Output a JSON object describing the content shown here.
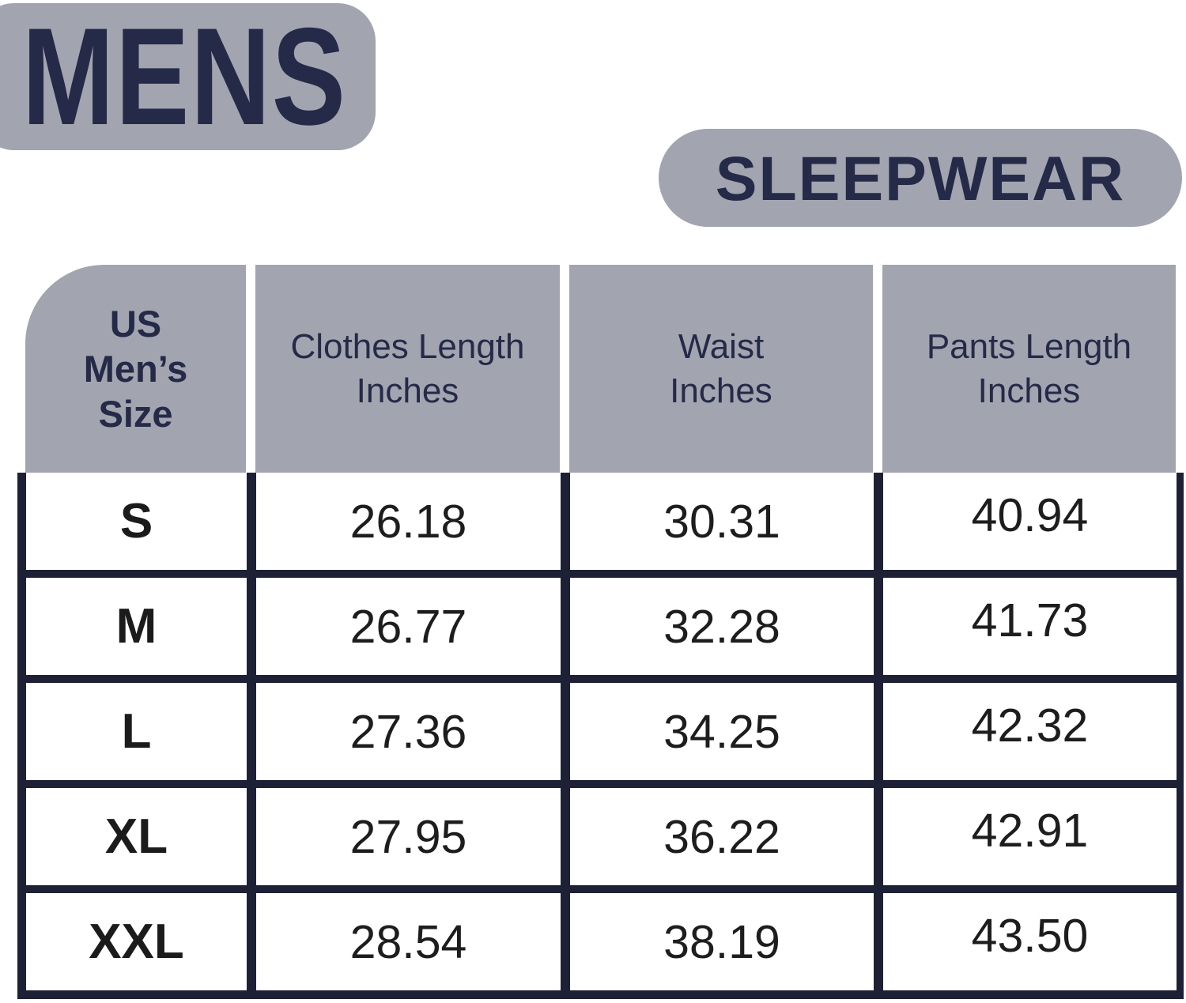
{
  "badges": {
    "mens": "MENS",
    "sleepwear": "SLEEPWEAR"
  },
  "table": {
    "header": {
      "size": {
        "l1": "US",
        "l2": "Men’s",
        "l3": "Size"
      },
      "clothes": {
        "l1": "Clothes Length",
        "l2": "Inches"
      },
      "waist": {
        "l1": "Waist",
        "l2": "Inches"
      },
      "pants": {
        "l1": "Pants Length",
        "l2": "Inches"
      }
    },
    "rows": [
      {
        "size": "S",
        "clothes_length": "26.18",
        "waist": "30.31",
        "pants_length": "40.94"
      },
      {
        "size": "M",
        "clothes_length": "26.77",
        "waist": "32.28",
        "pants_length": "41.73"
      },
      {
        "size": "L",
        "clothes_length": "27.36",
        "waist": "34.25",
        "pants_length": "42.32"
      },
      {
        "size": "XL",
        "clothes_length": "27.95",
        "waist": "36.22",
        "pants_length": "42.91"
      },
      {
        "size": "XXL",
        "clothes_length": "28.54",
        "waist": "38.19",
        "pants_length": "43.50"
      }
    ]
  },
  "colors": {
    "badge_gray": "#a2a4b0",
    "navy_text": "#252a48",
    "table_border_navy": "#1e2136",
    "body_text": "#1d1d1d",
    "background": "#ffffff"
  },
  "chart_data": {
    "type": "table",
    "title": "MENS SLEEPWEAR size chart",
    "columns": [
      "US Men’s Size",
      "Clothes Length Inches",
      "Waist Inches",
      "Pants Length Inches"
    ],
    "rows": [
      [
        "S",
        26.18,
        30.31,
        40.94
      ],
      [
        "M",
        26.77,
        32.28,
        41.73
      ],
      [
        "L",
        27.36,
        34.25,
        42.32
      ],
      [
        "XL",
        27.95,
        36.22,
        42.91
      ],
      [
        "XXL",
        28.54,
        38.19,
        43.5
      ]
    ],
    "units": "inches"
  }
}
